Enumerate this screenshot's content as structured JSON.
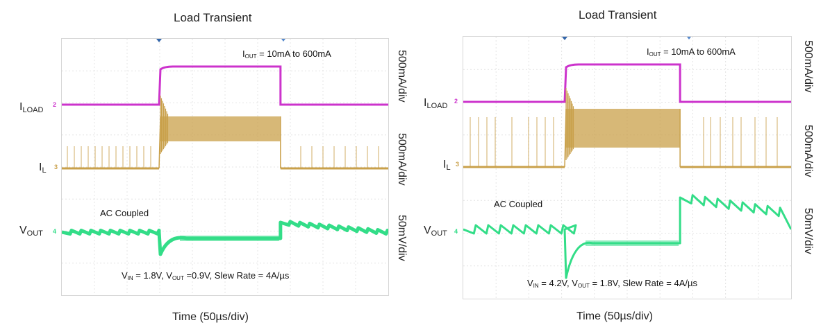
{
  "chart_data": [
    {
      "type": "line",
      "title": "Load Transient",
      "xlabel": "Time (50µs/div)",
      "time_division_us": 50,
      "grid": true,
      "channels": [
        {
          "name": "ILOAD",
          "label_main": "I",
          "label_sub": "LOAD",
          "marker": "2",
          "scale": "500mA/div",
          "color": "#cc33cc",
          "levels": {
            "before": "10mA",
            "during": "600mA",
            "after": "10mA"
          }
        },
        {
          "name": "IL",
          "label_main": "I",
          "label_sub": "L",
          "marker": "3",
          "scale": "500mA/div",
          "color": "#c9a04a",
          "levels": {
            "before": "10mA",
            "during": "600mA",
            "after": "10mA"
          }
        },
        {
          "name": "VOUT",
          "label_main": "V",
          "label_sub": "OUT",
          "marker": "4",
          "scale": "50mV/div",
          "color": "#33dd88",
          "coupling": "AC Coupled"
        }
      ],
      "step": {
        "start_us": 0,
        "end_us": 186
      },
      "annotations": {
        "iout_main": "I",
        "iout_sub": "OUT",
        "iout_rest": " = 10mA to 600mA",
        "vin_main": "V",
        "vin_sub": "IN",
        "vin_rest": " = 1.8V, ",
        "vout_main": "V",
        "vout_sub": "OUT",
        "vout_rest": " =0.9V, Slew Rate = 4A/µs",
        "coupling": "AC Coupled"
      },
      "conditions": {
        "VIN": "1.8V",
        "VOUT": "0.9V",
        "slew_rate": "4A/µs",
        "IOUT": "10mA to 600mA"
      }
    },
    {
      "type": "line",
      "title": "Load Transient",
      "xlabel": "Time (50µs/div)",
      "time_division_us": 50,
      "grid": true,
      "channels": [
        {
          "name": "ILOAD",
          "label_main": "I",
          "label_sub": "LOAD",
          "marker": "2",
          "scale": "500mA/div",
          "color": "#cc33cc",
          "levels": {
            "before": "10mA",
            "during": "600mA",
            "after": "10mA"
          }
        },
        {
          "name": "IL",
          "label_main": "I",
          "label_sub": "L",
          "marker": "3",
          "scale": "500mA/div",
          "color": "#c9a04a",
          "levels": {
            "before": "10mA",
            "during": "600mA",
            "after": "10mA"
          }
        },
        {
          "name": "VOUT",
          "label_main": "V",
          "label_sub": "OUT",
          "marker": "4",
          "scale": "50mV/div",
          "color": "#33dd88",
          "coupling": "AC Coupled"
        }
      ],
      "step": {
        "start_us": 0,
        "end_us": 176
      },
      "annotations": {
        "iout_main": "I",
        "iout_sub": "OUT",
        "iout_rest": " = 10mA to 600mA",
        "vin_main": "V",
        "vin_sub": "IN",
        "vin_rest": " = 4.2V, ",
        "vout_main": "V",
        "vout_sub": "OUT",
        "vout_rest": " = 1.8V, Slew Rate = 4A/µs",
        "coupling": "AC Coupled"
      },
      "conditions": {
        "VIN": "4.2V",
        "VOUT": "1.8V",
        "slew_rate": "4A/µs",
        "IOUT": "10mA to 600mA"
      }
    }
  ]
}
